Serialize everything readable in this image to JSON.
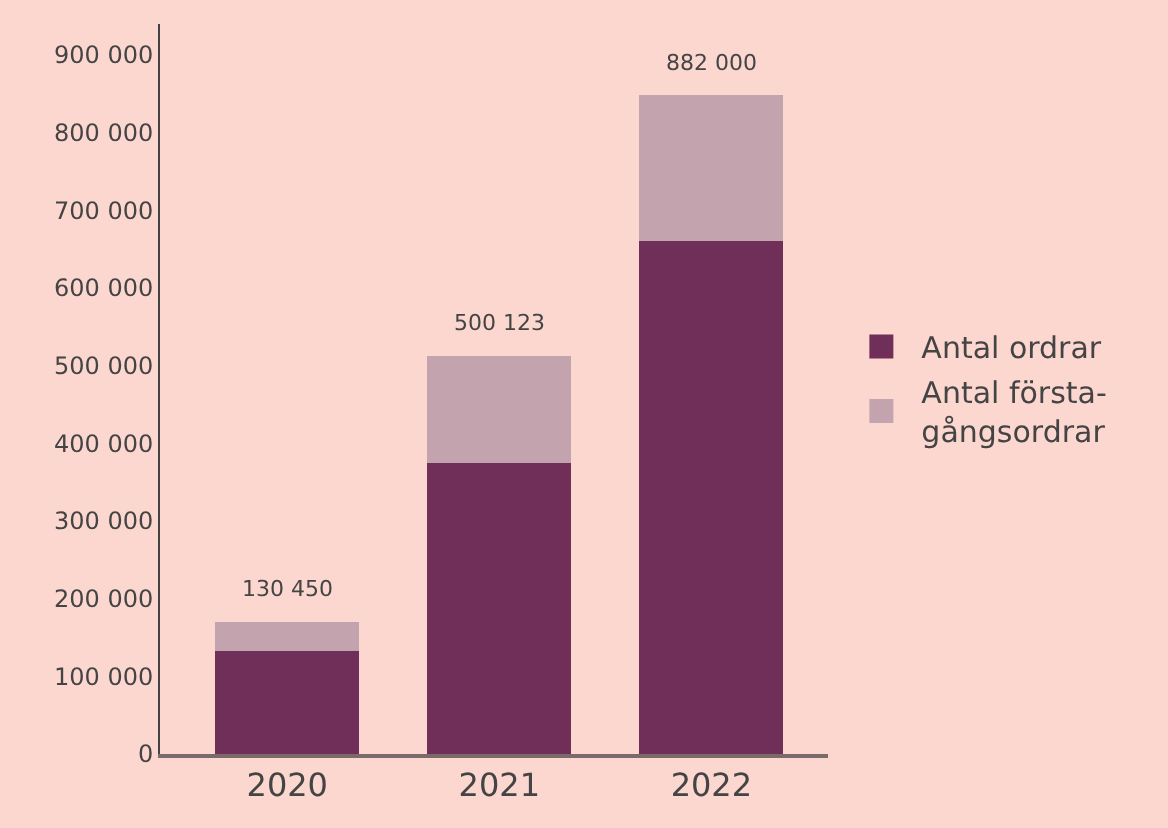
{
  "chart_data": {
    "type": "bar",
    "stacked": true,
    "categories": [
      "2020",
      "2021",
      "2022"
    ],
    "series": [
      {
        "name": "Antal ordrar",
        "color": "#6f2f59",
        "values": [
          132000,
          375000,
          661000
        ]
      },
      {
        "name": "Antal första-\ngångsordrar",
        "color": "#c3a4ae",
        "values": [
          38000,
          138000,
          187000
        ]
      }
    ],
    "annotations": [
      {
        "text": "130 450",
        "x": "2020",
        "y": 170000
      },
      {
        "text": "500 123",
        "x": "2021",
        "y": 513000
      },
      {
        "text": "882 000",
        "x": "2022",
        "y": 848000
      }
    ],
    "ylim": [
      0,
      940000
    ],
    "yticks": [
      {
        "value": 0,
        "label": "0"
      },
      {
        "value": 100000,
        "label": "100 000"
      },
      {
        "value": 200000,
        "label": "200 000"
      },
      {
        "value": 300000,
        "label": "300 000"
      },
      {
        "value": 400000,
        "label": "400 000"
      },
      {
        "value": 500000,
        "label": "500 000"
      },
      {
        "value": 600000,
        "label": "600 000"
      },
      {
        "value": 700000,
        "label": "700 000"
      },
      {
        "value": 800000,
        "label": "800 000"
      },
      {
        "value": 900000,
        "label": "900 000"
      }
    ],
    "grid": false,
    "legend": "right"
  }
}
